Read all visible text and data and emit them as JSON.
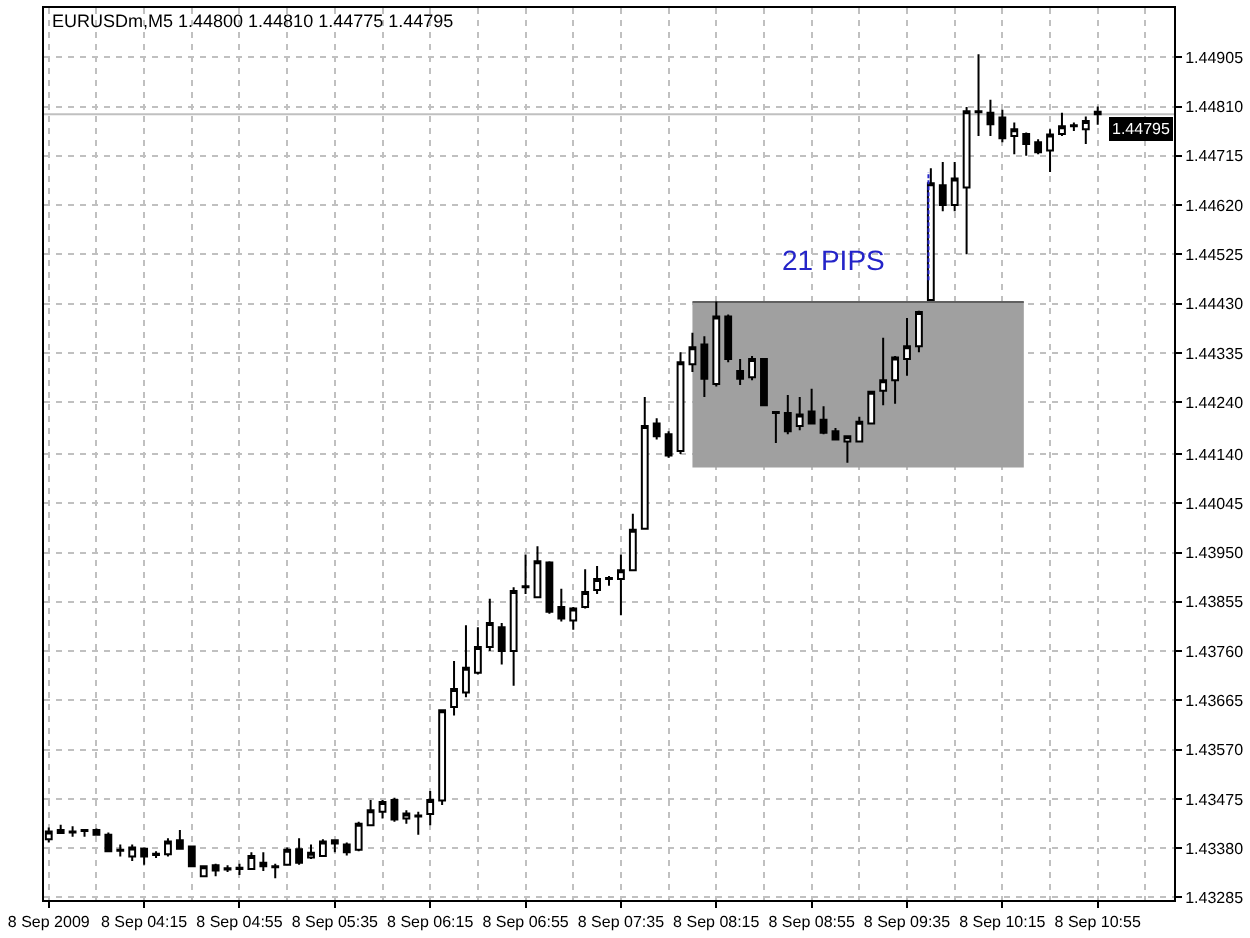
{
  "chart_data": {
    "type": "candlestick",
    "title": "EURUSDm,M5 1.44800 1.44810 1.44775 1.44795",
    "x": [
      "2009-09-08T03:35",
      "2009-09-08T03:40",
      "2009-09-08T03:45",
      "2009-09-08T03:50",
      "2009-09-08T03:55",
      "2009-09-08T04:00",
      "2009-09-08T04:05",
      "2009-09-08T04:10",
      "2009-09-08T04:15",
      "2009-09-08T04:20",
      "2009-09-08T04:25",
      "2009-09-08T04:30",
      "2009-09-08T04:35",
      "2009-09-08T04:40",
      "2009-09-08T04:45",
      "2009-09-08T04:50",
      "2009-09-08T04:55",
      "2009-09-08T05:00",
      "2009-09-08T05:05",
      "2009-09-08T05:10",
      "2009-09-08T05:15",
      "2009-09-08T05:20",
      "2009-09-08T05:25",
      "2009-09-08T05:30",
      "2009-09-08T05:35",
      "2009-09-08T05:40",
      "2009-09-08T05:45",
      "2009-09-08T05:50",
      "2009-09-08T05:55",
      "2009-09-08T06:00",
      "2009-09-08T06:05",
      "2009-09-08T06:10",
      "2009-09-08T06:15",
      "2009-09-08T06:20",
      "2009-09-08T06:25",
      "2009-09-08T06:30",
      "2009-09-08T06:35",
      "2009-09-08T06:40",
      "2009-09-08T06:45",
      "2009-09-08T06:50",
      "2009-09-08T06:55",
      "2009-09-08T07:00",
      "2009-09-08T07:05",
      "2009-09-08T07:10",
      "2009-09-08T07:15",
      "2009-09-08T07:20",
      "2009-09-08T07:25",
      "2009-09-08T07:30",
      "2009-09-08T07:35",
      "2009-09-08T07:40",
      "2009-09-08T07:45",
      "2009-09-08T07:50",
      "2009-09-08T07:55",
      "2009-09-08T08:00",
      "2009-09-08T08:05",
      "2009-09-08T08:10",
      "2009-09-08T08:15",
      "2009-09-08T08:20",
      "2009-09-08T08:25",
      "2009-09-08T08:30",
      "2009-09-08T08:35",
      "2009-09-08T08:40",
      "2009-09-08T08:45",
      "2009-09-08T08:50",
      "2009-09-08T08:55",
      "2009-09-08T09:00",
      "2009-09-08T09:05",
      "2009-09-08T09:10",
      "2009-09-08T09:15",
      "2009-09-08T09:20",
      "2009-09-08T09:25",
      "2009-09-08T09:30",
      "2009-09-08T09:35",
      "2009-09-08T09:40",
      "2009-09-08T09:45",
      "2009-09-08T09:50",
      "2009-09-08T09:55",
      "2009-09-08T10:00",
      "2009-09-08T10:05",
      "2009-09-08T10:10",
      "2009-09-08T10:15",
      "2009-09-08T10:20",
      "2009-09-08T10:25",
      "2009-09-08T10:30",
      "2009-09-08T10:35",
      "2009-09-08T10:40",
      "2009-09-08T10:45",
      "2009-09-08T10:50",
      "2009-09-08T10:55"
    ],
    "series": [
      {
        "type": "line",
        "color": "#606060",
        "x": [
          "2009-09-08T08:05",
          "2009-09-08T10:24"
        ],
        "values": [
          1.44433,
          1.44433
        ],
        "lower": [
          1.44114,
          1.44114
        ],
        "upper": [
          1.44433,
          1.44433
        ]
      },
      {
        "color": "#000000",
        "ohlc": [
          [
            1.43397,
            1.4342,
            1.43391,
            1.43412
          ],
          [
            1.43415,
            1.43425,
            1.43408,
            1.43409
          ],
          [
            1.43412,
            1.43422,
            1.43402,
            1.4341
          ],
          [
            1.43415,
            1.43416,
            1.43402,
            1.43413
          ],
          [
            1.43415,
            1.43418,
            1.43404,
            1.43406
          ],
          [
            1.43406,
            1.4341,
            1.43372,
            1.43374
          ],
          [
            1.43377,
            1.43387,
            1.43364,
            1.43375
          ],
          [
            1.43364,
            1.43387,
            1.43355,
            1.43381
          ],
          [
            1.43379,
            1.43381,
            1.43348,
            1.43364
          ],
          [
            1.43369,
            1.43374,
            1.43361,
            1.43367
          ],
          [
            1.43368,
            1.43399,
            1.43364,
            1.43393
          ],
          [
            1.43395,
            1.43415,
            1.43377,
            1.43379
          ],
          [
            1.43383,
            1.43384,
            1.43343,
            1.43345
          ],
          [
            1.43326,
            1.43346,
            1.43324,
            1.43345
          ],
          [
            1.43347,
            1.4335,
            1.43326,
            1.43337
          ],
          [
            1.43341,
            1.43347,
            1.43334,
            1.43339
          ],
          [
            1.4334,
            1.4335,
            1.43328,
            1.43342
          ],
          [
            1.4334,
            1.43372,
            1.43338,
            1.43365
          ],
          [
            1.43352,
            1.43372,
            1.43336,
            1.43345
          ],
          [
            1.43345,
            1.4335,
            1.43322,
            1.43343
          ],
          [
            1.43348,
            1.43381,
            1.43346,
            1.43377
          ],
          [
            1.43378,
            1.43399,
            1.43348,
            1.43352
          ],
          [
            1.43362,
            1.43387,
            1.43359,
            1.43371
          ],
          [
            1.43365,
            1.43397,
            1.43364,
            1.43393
          ],
          [
            1.43395,
            1.43397,
            1.43372,
            1.43389
          ],
          [
            1.43387,
            1.43391,
            1.43366,
            1.43372
          ],
          [
            1.43377,
            1.43431,
            1.43374,
            1.43427
          ],
          [
            1.43424,
            1.43473,
            1.43422,
            1.43453
          ],
          [
            1.4345,
            1.43473,
            1.43437,
            1.43469
          ],
          [
            1.43473,
            1.43477,
            1.43431,
            1.43435
          ],
          [
            1.43437,
            1.43453,
            1.43427,
            1.43447
          ],
          [
            1.43443,
            1.4345,
            1.43406,
            1.43441
          ],
          [
            1.43446,
            1.4349,
            1.43424,
            1.43473
          ],
          [
            1.43472,
            1.43648,
            1.43463,
            1.43646
          ],
          [
            1.43652,
            1.43741,
            1.43636,
            1.43687
          ],
          [
            1.4368,
            1.4381,
            1.43671,
            1.43728
          ],
          [
            1.43718,
            1.43806,
            1.43715,
            1.43768
          ],
          [
            1.43768,
            1.43861,
            1.4376,
            1.43814
          ],
          [
            1.43806,
            1.43814,
            1.43734,
            1.4376
          ],
          [
            1.4376,
            1.43883,
            1.43693,
            1.43876
          ],
          [
            1.43883,
            1.43946,
            1.4387,
            1.43885
          ],
          [
            1.43864,
            1.43962,
            1.43862,
            1.43933
          ],
          [
            1.43931,
            1.43933,
            1.43832,
            1.43836
          ],
          [
            1.43845,
            1.4388,
            1.43817,
            1.43823
          ],
          [
            1.43819,
            1.43845,
            1.43801,
            1.43842
          ],
          [
            1.43845,
            1.43918,
            1.43842,
            1.43874
          ],
          [
            1.43878,
            1.43924,
            1.4387,
            1.43899
          ],
          [
            1.43899,
            1.43905,
            1.43886,
            1.43901
          ],
          [
            1.43899,
            1.43946,
            1.43829,
            1.43916
          ],
          [
            1.43916,
            1.44025,
            1.43914,
            1.43994
          ],
          [
            1.43996,
            1.4425,
            1.43994,
            1.44194
          ],
          [
            1.44199,
            1.44209,
            1.44168,
            1.44174
          ],
          [
            1.44178,
            1.44184,
            1.44133,
            1.44137
          ],
          [
            1.44146,
            1.44336,
            1.4414,
            1.44317
          ],
          [
            1.44313,
            1.44374,
            1.44298,
            1.44346
          ],
          [
            1.44351,
            1.44367,
            1.4425,
            1.44285
          ],
          [
            1.44275,
            1.44434,
            1.4427,
            1.44405
          ],
          [
            1.44405,
            1.44409,
            1.44317,
            1.44323
          ],
          [
            1.443,
            1.44323,
            1.44273,
            1.44285
          ],
          [
            1.44288,
            1.44329,
            1.44282,
            1.44323
          ],
          [
            1.44323,
            1.44325,
            1.44232,
            1.44234
          ],
          [
            1.44221,
            1.44222,
            1.44161,
            1.44219
          ],
          [
            1.44219,
            1.44254,
            1.44178,
            1.44184
          ],
          [
            1.44194,
            1.4425,
            1.44186,
            1.44216
          ],
          [
            1.44222,
            1.44266,
            1.44197,
            1.44199
          ],
          [
            1.44206,
            1.44232,
            1.44178,
            1.44181
          ],
          [
            1.44184,
            1.4419,
            1.44166,
            1.44168
          ],
          [
            1.44164,
            1.44176,
            1.44123,
            1.44174
          ],
          [
            1.44164,
            1.44212,
            1.44162,
            1.44202
          ],
          [
            1.44199,
            1.44262,
            1.44197,
            1.4426
          ],
          [
            1.44262,
            1.44364,
            1.44234,
            1.44282
          ],
          [
            1.44282,
            1.44329,
            1.44237,
            1.44326
          ],
          [
            1.44323,
            1.44402,
            1.44291,
            1.44348
          ],
          [
            1.44348,
            1.44416,
            1.44336,
            1.44414
          ],
          [
            1.44437,
            1.44691,
            1.44436,
            1.44662
          ],
          [
            1.44658,
            1.44703,
            1.44608,
            1.4462
          ],
          [
            1.4462,
            1.44703,
            1.44608,
            1.44671
          ],
          [
            1.44654,
            1.44809,
            1.44525,
            1.44801
          ],
          [
            1.44801,
            1.44911,
            1.44753,
            1.44799
          ],
          [
            1.44798,
            1.44823,
            1.44753,
            1.44776
          ],
          [
            1.44789,
            1.44804,
            1.44741,
            1.44749
          ],
          [
            1.44753,
            1.44779,
            1.44718,
            1.44766
          ],
          [
            1.44757,
            1.4476,
            1.44715,
            1.44738
          ],
          [
            1.44741,
            1.44747,
            1.44718,
            1.44722
          ],
          [
            1.44725,
            1.44766,
            1.44684,
            1.44756
          ],
          [
            1.44757,
            1.44798,
            1.44753,
            1.44772
          ],
          [
            1.44772,
            1.44779,
            1.44763,
            1.44774
          ],
          [
            1.44766,
            1.44791,
            1.44738,
            1.44782
          ],
          [
            1.448,
            1.4481,
            1.44775,
            1.44795
          ]
        ]
      },
      {
        "type": "line",
        "name": "21 PIPS",
        "color": "#2424c8",
        "line_style": "dotted",
        "x": [
          "2009-09-08T09:44",
          "2009-09-08T09:44"
        ],
        "values": [
          1.44475,
          1.44684
        ]
      }
    ],
    "xlim": [
      "2009-09-08T03:33",
      "2009-09-08T11:27"
    ],
    "ylim": [
      1.4328,
      1.45
    ],
    "xticks": [
      {
        "value": "2009-09-08T03:35",
        "label": "8 Sep 2009"
      },
      {
        "value": "2009-09-08T04:15",
        "label": "8 Sep 04:15"
      },
      {
        "value": "2009-09-08T04:55",
        "label": "8 Sep 04:55"
      },
      {
        "value": "2009-09-08T05:35",
        "label": "8 Sep 05:35"
      },
      {
        "value": "2009-09-08T06:15",
        "label": "8 Sep 06:15"
      },
      {
        "value": "2009-09-08T06:55",
        "label": "8 Sep 06:55"
      },
      {
        "value": "2009-09-08T07:35",
        "label": "8 Sep 07:35"
      },
      {
        "value": "2009-09-08T08:15",
        "label": "8 Sep 08:15"
      },
      {
        "value": "2009-09-08T08:55",
        "label": "8 Sep 08:55"
      },
      {
        "value": "2009-09-08T09:35",
        "label": "8 Sep 09:35"
      },
      {
        "value": "2009-09-08T10:15",
        "label": "8 Sep 10:15"
      },
      {
        "value": "2009-09-08T10:55",
        "label": "8 Sep 10:55"
      },
      {
        "value": "2009-09-08T03:55",
        "label": null
      },
      {
        "value": "2009-09-08T04:35",
        "label": null
      },
      {
        "value": "2009-09-08T05:15",
        "label": null
      },
      {
        "value": "2009-09-08T05:55",
        "label": null
      },
      {
        "value": "2009-09-08T06:35",
        "label": null
      },
      {
        "value": "2009-09-08T07:15",
        "label": null
      },
      {
        "value": "2009-09-08T07:55",
        "label": null
      },
      {
        "value": "2009-09-08T08:35",
        "label": null
      },
      {
        "value": "2009-09-08T09:15",
        "label": null
      },
      {
        "value": "2009-09-08T09:55",
        "label": null
      },
      {
        "value": "2009-09-08T10:35",
        "label": null
      },
      {
        "value": "2009-09-08T11:15",
        "label": null
      }
    ],
    "yticks": [
      1.44905,
      {
        "value": 1.4481,
        "label": "1.44810"
      },
      1.44715,
      {
        "value": 1.4462,
        "label": "1.44620"
      },
      1.44525,
      {
        "value": 1.4443,
        "label": "1.44430"
      },
      1.44335,
      {
        "value": 1.4424,
        "label": "1.44240"
      },
      {
        "value": 1.4414,
        "label": "1.44140"
      },
      1.44045,
      {
        "value": 1.4395,
        "label": "1.43950"
      },
      1.43855,
      {
        "value": 1.4376,
        "label": "1.43760"
      },
      1.43665,
      {
        "value": 1.4357,
        "label": "1.43570"
      },
      1.43475,
      {
        "value": 1.4338,
        "label": "1.43380"
      },
      1.43285
    ],
    "grid": true,
    "ref_lines": [
      {
        "axis": "y",
        "value": 1.44795,
        "label": "1.44795",
        "color": "#c0c0c0"
      }
    ]
  }
}
